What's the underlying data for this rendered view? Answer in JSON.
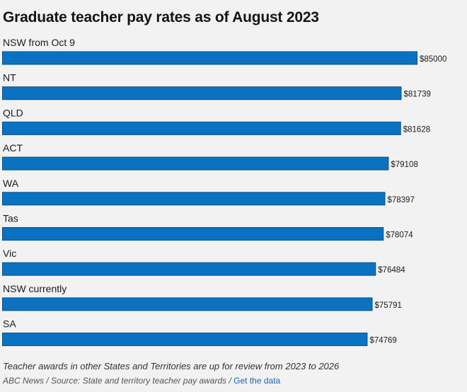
{
  "chart_data": {
    "type": "bar",
    "orientation": "horizontal",
    "title": "Graduate teacher pay rates as of August 2023",
    "categories": [
      "NSW from Oct 9",
      "NT",
      "QLD",
      "ACT",
      "WA",
      "Tas",
      "Vic",
      "NSW currently",
      "SA"
    ],
    "values": [
      85000,
      81739,
      81628,
      79108,
      78397,
      78074,
      76484,
      75791,
      74769
    ],
    "value_labels": [
      "$85000",
      "$81739",
      "$81628",
      "$79108",
      "$78397",
      "$78074",
      "$76484",
      "$75791",
      "$74769"
    ],
    "xlim": [
      0,
      85000
    ],
    "grid": false,
    "legend": "none",
    "bar_color": "#0a72c1"
  },
  "footer": {
    "note": "Teacher awards in other States and Territories are up for review from 2023 to 2026",
    "source_text": "ABC News / Source: State and territory teacher pay awards / ",
    "link_text": "Get the data"
  }
}
